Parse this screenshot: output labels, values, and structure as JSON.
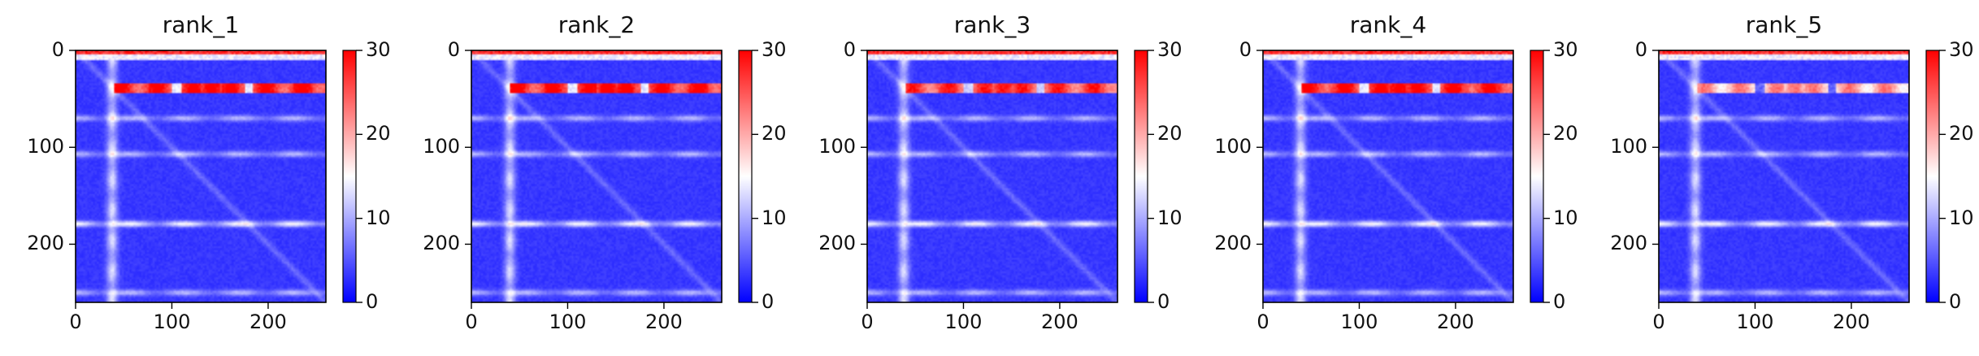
{
  "chart_data": [
    {
      "type": "heatmap",
      "title": "rank_1",
      "x_ticks": [
        "0",
        "100",
        "200"
      ],
      "y_ticks": [
        "0",
        "100",
        "200"
      ],
      "x_tick_values": [
        0,
        100,
        200
      ],
      "y_tick_values": [
        0,
        100,
        200
      ],
      "xlim": [
        0,
        260
      ],
      "ylim": [
        260,
        0
      ],
      "colorbar": {
        "colormap": "bwr",
        "range": [
          0,
          30
        ],
        "ticks": [
          "0",
          "10",
          "20",
          "30"
        ],
        "tick_values": [
          0,
          10,
          20,
          30
        ]
      },
      "features": {
        "red_band_rows": [
          34,
          44
        ],
        "red_band_strength": 30,
        "light_column": 38,
        "light_rows": [
          70,
          107,
          179,
          250
        ],
        "diagonal": true
      }
    },
    {
      "type": "heatmap",
      "title": "rank_2",
      "x_ticks": [
        "0",
        "100",
        "200"
      ],
      "y_ticks": [
        "0",
        "100",
        "200"
      ],
      "x_tick_values": [
        0,
        100,
        200
      ],
      "y_tick_values": [
        0,
        100,
        200
      ],
      "xlim": [
        0,
        260
      ],
      "ylim": [
        260,
        0
      ],
      "colorbar": {
        "colormap": "bwr",
        "range": [
          0,
          30
        ],
        "ticks": [
          "0",
          "10",
          "20",
          "30"
        ],
        "tick_values": [
          0,
          10,
          20,
          30
        ]
      },
      "features": {
        "red_band_rows": [
          34,
          44
        ],
        "red_band_strength": 30,
        "light_column": 40,
        "light_rows": [
          70,
          107,
          179,
          250
        ],
        "diagonal": true
      }
    },
    {
      "type": "heatmap",
      "title": "rank_3",
      "x_ticks": [
        "0",
        "100",
        "200"
      ],
      "y_ticks": [
        "0",
        "100",
        "200"
      ],
      "x_tick_values": [
        0,
        100,
        200
      ],
      "y_tick_values": [
        0,
        100,
        200
      ],
      "xlim": [
        0,
        260
      ],
      "ylim": [
        260,
        0
      ],
      "colorbar": {
        "colormap": "bwr",
        "range": [
          0,
          30
        ],
        "ticks": [
          "0",
          "10",
          "20",
          "30"
        ],
        "tick_values": [
          0,
          10,
          20,
          30
        ]
      },
      "features": {
        "red_band_rows": [
          34,
          44
        ],
        "red_band_strength": 28,
        "light_column": 38,
        "light_rows": [
          70,
          107,
          179,
          250
        ],
        "diagonal": true
      }
    },
    {
      "type": "heatmap",
      "title": "rank_4",
      "x_ticks": [
        "0",
        "100",
        "200"
      ],
      "y_ticks": [
        "0",
        "100",
        "200"
      ],
      "x_tick_values": [
        0,
        100,
        200
      ],
      "y_tick_values": [
        0,
        100,
        200
      ],
      "xlim": [
        0,
        260
      ],
      "ylim": [
        260,
        0
      ],
      "colorbar": {
        "colormap": "bwr",
        "range": [
          0,
          30
        ],
        "ticks": [
          "0",
          "10",
          "20",
          "30"
        ],
        "tick_values": [
          0,
          10,
          20,
          30
        ]
      },
      "features": {
        "red_band_rows": [
          34,
          44
        ],
        "red_band_strength": 30,
        "light_column": 39,
        "light_rows": [
          70,
          107,
          179,
          250
        ],
        "diagonal": true
      }
    },
    {
      "type": "heatmap",
      "title": "rank_5",
      "x_ticks": [
        "0",
        "100",
        "200"
      ],
      "y_ticks": [
        "0",
        "100",
        "200"
      ],
      "x_tick_values": [
        0,
        100,
        200
      ],
      "y_tick_values": [
        0,
        100,
        200
      ],
      "xlim": [
        0,
        260
      ],
      "ylim": [
        260,
        0
      ],
      "colorbar": {
        "colormap": "bwr",
        "range": [
          0,
          30
        ],
        "ticks": [
          "0",
          "10",
          "20",
          "30"
        ],
        "tick_values": [
          0,
          10,
          20,
          30
        ]
      },
      "features": {
        "red_band_rows": [
          34,
          44
        ],
        "red_band_strength": 22,
        "light_column": 38,
        "light_rows": [
          70,
          107,
          179,
          250
        ],
        "diagonal": true
      }
    }
  ]
}
